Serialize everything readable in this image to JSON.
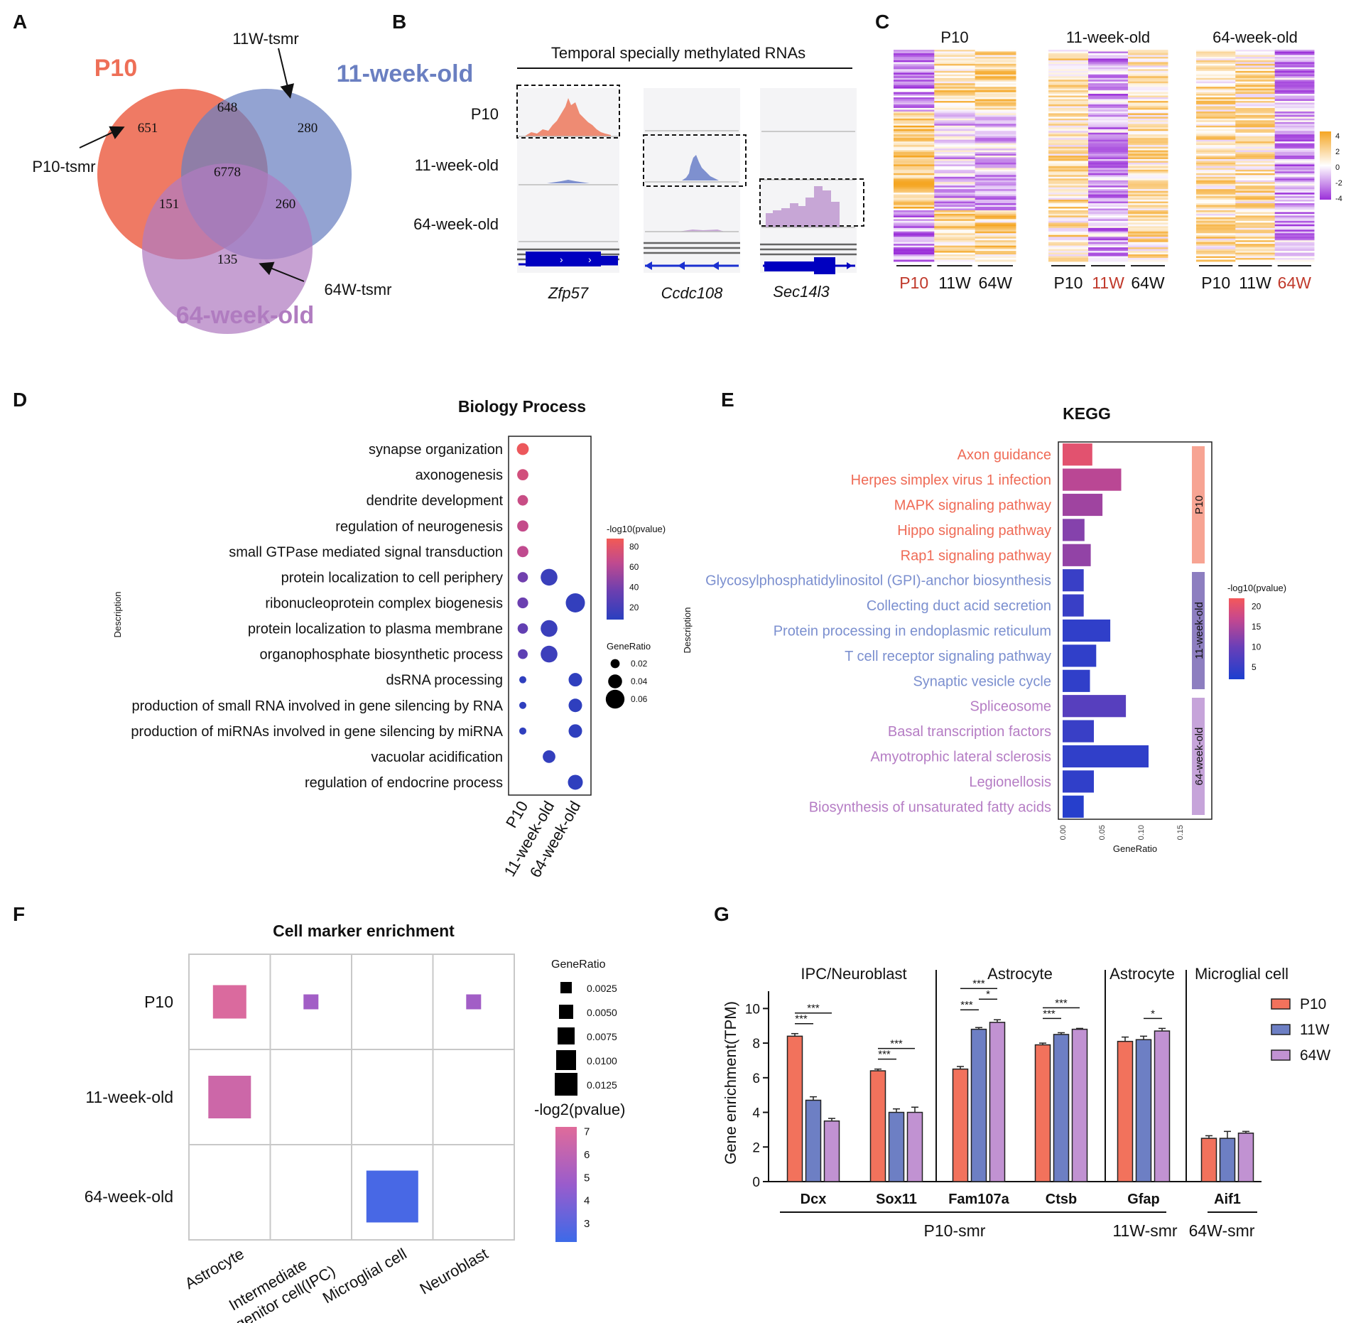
{
  "panels": {
    "A": {
      "letter": "A",
      "sets": [
        {
          "name": "P10",
          "color": "#ee6f57"
        },
        {
          "name": "11-week-old",
          "color": "#6a7fc1"
        },
        {
          "name": "64-week-old",
          "color": "#b07cc0"
        }
      ],
      "regions": {
        "p10_only": "651",
        "p10_11w": "648",
        "w11_only": "280",
        "all_three": "6778",
        "p10_64w": "151",
        "w11_64w": "260",
        "w64_only": "135"
      },
      "annotations": {
        "p10": "P10-tsmr",
        "w11": "11W-tsmr",
        "w64": "64W-tsmr"
      }
    },
    "B": {
      "letter": "B",
      "title": "Temporal specially methylated RNAs",
      "row_labels": [
        "P10",
        "11-week-old",
        "64-week-old"
      ],
      "genes": [
        "Zfp57",
        "Ccdc108",
        "Sec14l3"
      ],
      "track_colors": [
        "#ee8b73",
        "#7e90cf",
        "#c7a6d6"
      ]
    },
    "C": {
      "letter": "C",
      "heatmaps": [
        {
          "title": "P10",
          "x_labels": [
            "P10",
            "11W",
            "64W"
          ],
          "highlight": 0
        },
        {
          "title": "11-week-old",
          "x_labels": [
            "P10",
            "11W",
            "64W"
          ],
          "highlight": 1
        },
        {
          "title": "64-week-old",
          "x_labels": [
            "P10",
            "11W",
            "64W"
          ],
          "highlight": 2
        }
      ],
      "legend_ticks": [
        "4",
        "2",
        "0",
        "-2",
        "-4"
      ],
      "colors": {
        "high": "#f5a623",
        "mid": "#ffffff",
        "low": "#9b30d9",
        "highlight_label": "#c0392b"
      }
    },
    "D": {
      "letter": "D",
      "chart_data": {
        "type": "scatter",
        "title": "Biology Process",
        "ylabel": "Description",
        "x_categories": [
          "P10",
          "11-week-old",
          "64-week-old"
        ],
        "y_categories": [
          "synapse organization",
          "axonogenesis",
          "dendrite development",
          "regulation of neurogenesis",
          "small GTPase mediated signal transduction",
          "protein localization to cell periphery",
          "ribonucleoprotein complex biogenesis",
          "protein localization to plasma membrane",
          "organophosphate biosynthetic process",
          "dsRNA processing",
          "production of small RNA involved in gene silencing by RNA",
          "production of miRNAs involved in gene silencing by miRNA",
          "vacuolar acidification",
          "regulation of endocrine process"
        ],
        "points": [
          {
            "term": 0,
            "group": 0,
            "gene_ratio": 0.032,
            "neglog10p": 85
          },
          {
            "term": 1,
            "group": 0,
            "gene_ratio": 0.029,
            "neglog10p": 72
          },
          {
            "term": 2,
            "group": 0,
            "gene_ratio": 0.026,
            "neglog10p": 68
          },
          {
            "term": 3,
            "group": 0,
            "gene_ratio": 0.029,
            "neglog10p": 66
          },
          {
            "term": 4,
            "group": 0,
            "gene_ratio": 0.029,
            "neglog10p": 64
          },
          {
            "term": 5,
            "group": 0,
            "gene_ratio": 0.025,
            "neglog10p": 38
          },
          {
            "term": 5,
            "group": 1,
            "gene_ratio": 0.052,
            "neglog10p": 15
          },
          {
            "term": 6,
            "group": 0,
            "gene_ratio": 0.027,
            "neglog10p": 36
          },
          {
            "term": 6,
            "group": 2,
            "gene_ratio": 0.062,
            "neglog10p": 12
          },
          {
            "term": 7,
            "group": 0,
            "gene_ratio": 0.025,
            "neglog10p": 32
          },
          {
            "term": 7,
            "group": 1,
            "gene_ratio": 0.052,
            "neglog10p": 15
          },
          {
            "term": 8,
            "group": 0,
            "gene_ratio": 0.023,
            "neglog10p": 30
          },
          {
            "term": 8,
            "group": 1,
            "gene_ratio": 0.052,
            "neglog10p": 16
          },
          {
            "term": 9,
            "group": 0,
            "gene_ratio": 0.012,
            "neglog10p": 10
          },
          {
            "term": 9,
            "group": 2,
            "gene_ratio": 0.038,
            "neglog10p": 10
          },
          {
            "term": 10,
            "group": 0,
            "gene_ratio": 0.012,
            "neglog10p": 10
          },
          {
            "term": 10,
            "group": 2,
            "gene_ratio": 0.038,
            "neglog10p": 10
          },
          {
            "term": 11,
            "group": 0,
            "gene_ratio": 0.012,
            "neglog10p": 10
          },
          {
            "term": 11,
            "group": 2,
            "gene_ratio": 0.038,
            "neglog10p": 10
          },
          {
            "term": 12,
            "group": 1,
            "gene_ratio": 0.035,
            "neglog10p": 12
          },
          {
            "term": 13,
            "group": 2,
            "gene_ratio": 0.044,
            "neglog10p": 10
          }
        ],
        "color_legend_title": "-log10(pvalue)",
        "color_ticks": [
          80,
          60,
          40,
          20
        ],
        "color_range": [
          8,
          88
        ],
        "size_legend_title": "GeneRatio",
        "size_ticks": [
          "0.02",
          "0.04",
          "0.06"
        ]
      }
    },
    "E": {
      "letter": "E",
      "chart_data": {
        "type": "bar",
        "orientation": "horizontal",
        "title": "KEGG",
        "xlabel": "GeneRatio",
        "ylabel": "Description",
        "xlim": [
          0,
          0.15
        ],
        "x_ticks": [
          "0.00",
          "0.05",
          "0.10",
          "0.15"
        ],
        "categories": [
          "Axon guidance",
          "Herpes simplex virus 1 infection",
          "MAPK signaling pathway",
          "Hippo signaling pathway",
          "Rap1 signaling pathway",
          "Glycosylphosphatidylinositol (GPI)-anchor biosynthesis",
          "Collecting duct acid secretion",
          "Protein processing in endoplasmic reticulum",
          "T cell receptor signaling pathway",
          "Synaptic vesicle cycle",
          "Spliceosome",
          "Basal transcription factors",
          "Amyotrophic lateral sclerosis",
          "Legionellosis",
          "Biosynthesis of unsaturated fatty acids"
        ],
        "values": [
          0.038,
          0.075,
          0.051,
          0.028,
          0.036,
          0.027,
          0.027,
          0.061,
          0.043,
          0.035,
          0.081,
          0.04,
          0.11,
          0.04,
          0.027
        ],
        "neglog10p": [
          20,
          16,
          14,
          12,
          13,
          5,
          5,
          4,
          4,
          4,
          8,
          5,
          4,
          4,
          3
        ],
        "groups": [
          "P10",
          "P10",
          "P10",
          "P10",
          "P10",
          "11-week-old",
          "11-week-old",
          "11-week-old",
          "11-week-old",
          "11-week-old",
          "64-week-old",
          "64-week-old",
          "64-week-old",
          "64-week-old",
          "64-week-old"
        ],
        "group_labels": [
          "P10",
          "11-week-old",
          "64-week-old"
        ],
        "group_colors": [
          "#ef6a55",
          "#7b8fcf",
          "#b57cc4"
        ],
        "group_bar_colors": [
          "#f7a493",
          "#8d7ec0",
          "#c6a4da"
        ],
        "color_legend_title": "-log10(pvalue)",
        "color_ticks": [
          20,
          15,
          10,
          5
        ],
        "color_range": [
          2,
          22
        ]
      }
    },
    "F": {
      "letter": "F",
      "chart_data": {
        "type": "heatmap",
        "title": "Cell marker enrichment",
        "rows": [
          "P10",
          "11-week-old",
          "64-week-old"
        ],
        "cols": [
          "Astrocyte",
          "Intermediate progenitor cell(IPC)",
          "Microglial cell",
          "Neuroblast"
        ],
        "col_label_lines": [
          [
            "Astrocyte"
          ],
          [
            "Intermediate",
            "progenitor cell(IPC)"
          ],
          [
            "Microglial cell"
          ],
          [
            "Neuroblast"
          ]
        ],
        "cells": [
          {
            "row": 0,
            "col": 0,
            "gene_ratio": 0.0075,
            "neglog2p": 7.0
          },
          {
            "row": 0,
            "col": 1,
            "gene_ratio": 0.0025,
            "neglog2p": 5.0
          },
          {
            "row": 0,
            "col": 3,
            "gene_ratio": 0.0025,
            "neglog2p": 5.0
          },
          {
            "row": 1,
            "col": 0,
            "gene_ratio": 0.01,
            "neglog2p": 6.5
          },
          {
            "row": 2,
            "col": 2,
            "gene_ratio": 0.0125,
            "neglog2p": 2.5
          }
        ],
        "size_legend_title": "GeneRatio",
        "size_ticks": [
          "0.0025",
          "0.0050",
          "0.0075",
          "0.0100",
          "0.0125"
        ],
        "color_legend_title": "-log2(pvalue)",
        "color_ticks": [
          "7",
          "6",
          "5",
          "4",
          "3"
        ],
        "color_range": [
          2.2,
          7.2
        ]
      }
    },
    "G": {
      "letter": "G",
      "chart_data": {
        "type": "bar",
        "ylabel": "Gene enrichment(TPM)",
        "ylim": [
          0,
          11
        ],
        "y_ticks": [
          0,
          2,
          4,
          6,
          8,
          10
        ],
        "series": [
          {
            "name": "P10",
            "color": "#f2725c",
            "values": [
              8.4,
              6.4,
              6.5,
              7.9,
              8.1,
              2.5
            ],
            "errors": [
              0.15,
              0.1,
              0.15,
              0.1,
              0.25,
              0.15
            ]
          },
          {
            "name": "11W",
            "color": "#6d7fc4",
            "values": [
              4.7,
              4.0,
              8.8,
              8.5,
              8.2,
              2.5
            ],
            "errors": [
              0.2,
              0.2,
              0.1,
              0.1,
              0.2,
              0.4
            ]
          },
          {
            "name": "64W",
            "color": "#c192d2",
            "values": [
              3.5,
              4.0,
              9.2,
              8.8,
              8.7,
              2.8
            ],
            "errors": [
              0.15,
              0.3,
              0.15,
              0.05,
              0.15,
              0.1
            ]
          }
        ],
        "categories": [
          "Dcx",
          "Sox11",
          "Fam107a",
          "Ctsb",
          "Gfap",
          "Aif1"
        ],
        "cell_types": [
          "IPC/Neuroblast",
          "Astrocyte",
          "Astrocyte",
          "Microglial cell"
        ],
        "groups": [
          "P10-smr",
          "11W-smr",
          "64W-smr"
        ],
        "significance": [
          {
            "gene": 0,
            "from": 0,
            "to": 1,
            "label": "***",
            "level": 0
          },
          {
            "gene": 0,
            "from": 0,
            "to": 2,
            "label": "***",
            "level": 1
          },
          {
            "gene": 1,
            "from": 0,
            "to": 1,
            "label": "***",
            "level": 0
          },
          {
            "gene": 1,
            "from": 0,
            "to": 2,
            "label": "***",
            "level": 1
          },
          {
            "gene": 2,
            "from": 0,
            "to": 1,
            "label": "***",
            "level": 0
          },
          {
            "gene": 2,
            "from": 1,
            "to": 2,
            "label": "*",
            "level": 1
          },
          {
            "gene": 2,
            "from": 0,
            "to": 2,
            "label": "***",
            "level": 2
          },
          {
            "gene": 3,
            "from": 0,
            "to": 1,
            "label": "***",
            "level": 0
          },
          {
            "gene": 3,
            "from": 0,
            "to": 2,
            "label": "***",
            "level": 1
          },
          {
            "gene": 4,
            "from": 1,
            "to": 2,
            "label": "*",
            "level": 0
          }
        ]
      }
    }
  }
}
